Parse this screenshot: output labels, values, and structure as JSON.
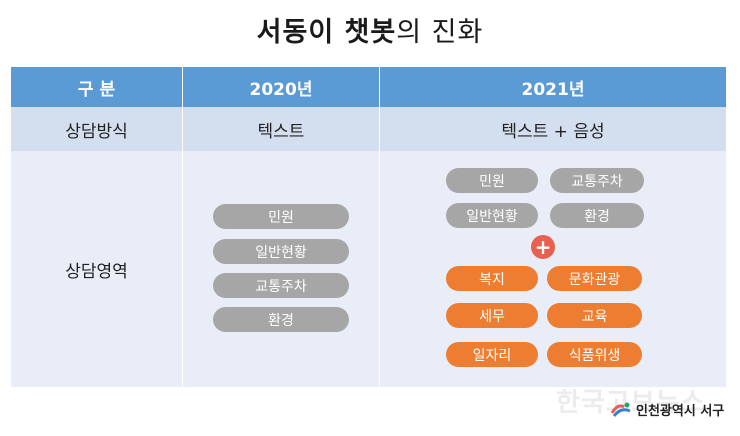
{
  "title": {
    "bold": "서동이 챗봇",
    "normal": "의 진화"
  },
  "table": {
    "headers": [
      "구 분",
      "2020년",
      "2021년"
    ],
    "method": {
      "label": "상담방식",
      "y2020": "텍스트",
      "y2021": "텍스트 + 음성"
    },
    "area": {
      "label": "상담영역",
      "y2020": [
        "민원",
        "일반현황",
        "교통주차",
        "환경"
      ],
      "y2021_existing": [
        "민원",
        "교통주차",
        "일반현황",
        "환경"
      ],
      "plus_symbol": "+",
      "y2021_new": [
        "복지",
        "문화관광",
        "세무",
        "교육",
        "일자리",
        "식품위생"
      ]
    }
  },
  "colors": {
    "header": "#5b9bd5",
    "gray_pill": "#a6a6a6",
    "orange_pill": "#ed7d31",
    "plus": "#e8604f"
  },
  "watermark": "한국고보뉴스",
  "logo": {
    "text": "인천광역시 서구"
  }
}
